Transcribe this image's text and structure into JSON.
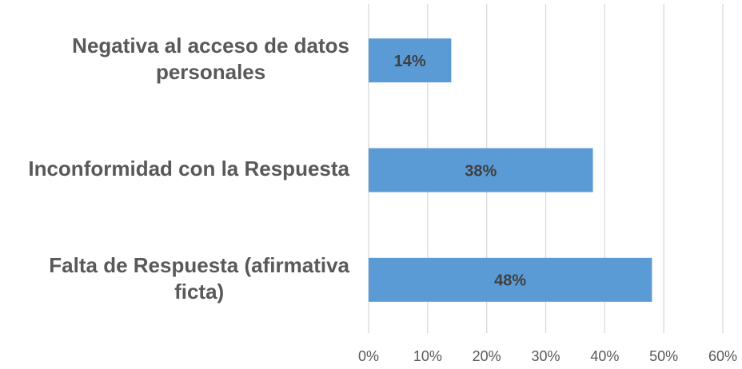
{
  "chart_data": {
    "type": "barh",
    "categories": [
      "Negativa al acceso de datos personales",
      "Inconformidad con la Respuesta",
      "Falta de Respuesta (afirmativa ficta)"
    ],
    "values": [
      14,
      38,
      48
    ],
    "value_labels": [
      "14%",
      "38%",
      "48%"
    ],
    "color": "#5b9bd5",
    "xlim": [
      0,
      60
    ],
    "xticks": [
      {
        "value": 0,
        "label": "0%"
      },
      {
        "value": 10,
        "label": "10%"
      },
      {
        "value": 20,
        "label": "20%"
      },
      {
        "value": 30,
        "label": "30%"
      },
      {
        "value": 40,
        "label": "40%"
      },
      {
        "value": 50,
        "label": "50%"
      },
      {
        "value": 60,
        "label": "60%"
      }
    ],
    "grid": true
  }
}
